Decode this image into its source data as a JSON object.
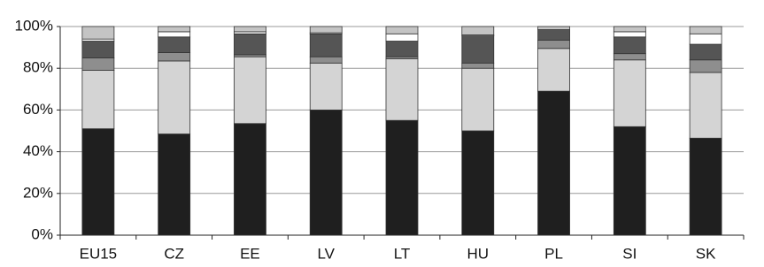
{
  "chart_data": {
    "type": "stacked_bar",
    "categories": [
      "EU15",
      "CZ",
      "EE",
      "LV",
      "LT",
      "HU",
      "PL",
      "SI",
      "SK"
    ],
    "series": [
      {
        "color": "#1f1f1f",
        "values": [
          51,
          48.5,
          53.5,
          60,
          55,
          50,
          69,
          52,
          46.5
        ]
      },
      {
        "color": "#d4d4d4",
        "values": [
          28,
          35,
          32,
          22.5,
          29.5,
          30,
          20.5,
          32,
          31.5
        ]
      },
      {
        "color": "#8e8e8e",
        "values": [
          6,
          4,
          1,
          3,
          1,
          2.5,
          4,
          3,
          6
        ]
      },
      {
        "color": "#555555",
        "values": [
          8,
          7.5,
          10,
          11,
          7.5,
          13,
          5,
          8,
          7.5
        ]
      },
      {
        "color": "#ffffff",
        "values": [
          1,
          2.5,
          1,
          0.5,
          3.5,
          0.5,
          0,
          2.5,
          5
        ]
      },
      {
        "color": "#c4c4c4",
        "values": [
          6,
          2.5,
          2.5,
          3,
          3.5,
          4,
          1.5,
          2.5,
          3.5
        ]
      }
    ],
    "ylim": [
      0,
      100
    ],
    "yticks": [
      {
        "value": 0,
        "label": "0%"
      },
      {
        "value": 20,
        "label": "20%"
      },
      {
        "value": 40,
        "label": "40%"
      },
      {
        "value": 60,
        "label": "60%"
      },
      {
        "value": 80,
        "label": "80%"
      },
      {
        "value": 100,
        "label": "100%"
      }
    ],
    "grid": true
  }
}
